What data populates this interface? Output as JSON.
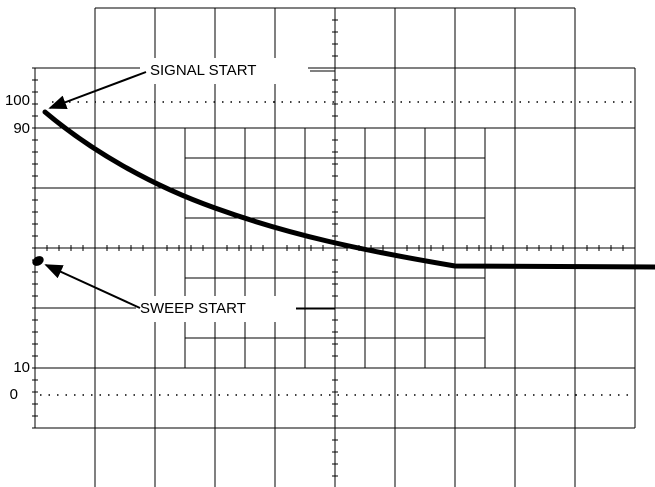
{
  "annotations": {
    "signal_start": "SIGNAL START",
    "sweep_start": "SWEEP START"
  },
  "scale_labels": [
    "100",
    "90",
    "10",
    "0"
  ]
}
